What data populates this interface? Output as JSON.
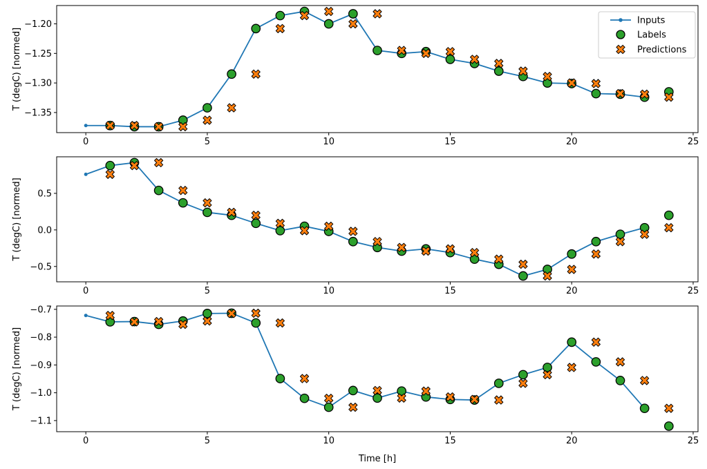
{
  "figure": {
    "background": "#ffffff",
    "xlabel": "Time [h]",
    "ylabel": "T (degC) [normed]",
    "colors": {
      "inputs": "#1f77b4",
      "labels": "#2ca02c",
      "predictions": "#ff7f0e",
      "marker_edge": "#000000",
      "axis": "#000000",
      "text": "#000000",
      "legend_border": "#cccccc",
      "legend_bg": "#ffffff"
    },
    "legend": {
      "position": "upper right",
      "items": [
        {
          "label": "Inputs",
          "marker": "line-dot",
          "color": "#1f77b4"
        },
        {
          "label": "Labels",
          "marker": "circle",
          "color": "#2ca02c"
        },
        {
          "label": "Predictions",
          "marker": "X",
          "color": "#ff7f0e"
        }
      ]
    }
  },
  "chart_data": [
    {
      "type": "line",
      "subplot": "top",
      "ylabel": "T (degC) [normed]",
      "xlabel": "",
      "grid": false,
      "legend": true,
      "xlim": [
        -1.2,
        25.2
      ],
      "ylim": [
        -1.384,
        -1.169
      ],
      "xtick_values": [
        0,
        5,
        10,
        15,
        20,
        25
      ],
      "xtick_labels": [
        "0",
        "5",
        "10",
        "15",
        "20",
        "25"
      ],
      "ytick_values": [
        -1.2,
        -1.25,
        -1.3,
        -1.35
      ],
      "ytick_labels": [
        "−1.20",
        "−1.25",
        "−1.30",
        "−1.35"
      ],
      "series": [
        {
          "name": "Inputs",
          "render": "line-dot",
          "x": [
            0,
            1,
            2,
            3,
            4,
            5,
            6,
            7,
            8,
            9,
            10,
            11,
            12,
            13,
            14,
            15,
            16,
            17,
            18,
            19,
            20,
            21,
            22,
            23
          ],
          "y": [
            -1.372,
            -1.372,
            -1.374,
            -1.374,
            -1.363,
            -1.342,
            -1.285,
            -1.208,
            -1.186,
            -1.179,
            -1.2,
            -1.183,
            -1.245,
            -1.25,
            -1.247,
            -1.26,
            -1.267,
            -1.28,
            -1.289,
            -1.3,
            -1.301,
            -1.318,
            -1.319,
            -1.324
          ]
        },
        {
          "name": "Labels",
          "render": "circle",
          "x": [
            1,
            2,
            3,
            4,
            5,
            6,
            7,
            8,
            9,
            10,
            11,
            12,
            13,
            14,
            15,
            16,
            17,
            18,
            19,
            20,
            21,
            22,
            23,
            24
          ],
          "y": [
            -1.372,
            -1.374,
            -1.374,
            -1.363,
            -1.342,
            -1.285,
            -1.208,
            -1.186,
            -1.179,
            -1.2,
            -1.183,
            -1.245,
            -1.25,
            -1.247,
            -1.26,
            -1.267,
            -1.28,
            -1.289,
            -1.3,
            -1.301,
            -1.318,
            -1.319,
            -1.324,
            -1.315
          ]
        },
        {
          "name": "Predictions",
          "render": "X",
          "x": [
            1,
            2,
            3,
            4,
            5,
            6,
            7,
            8,
            9,
            10,
            11,
            12,
            13,
            14,
            15,
            16,
            17,
            18,
            19,
            20,
            21,
            22,
            23,
            24
          ],
          "y": [
            -1.372,
            -1.372,
            -1.374,
            -1.374,
            -1.363,
            -1.342,
            -1.285,
            -1.208,
            -1.186,
            -1.179,
            -1.2,
            -1.183,
            -1.245,
            -1.25,
            -1.247,
            -1.26,
            -1.267,
            -1.28,
            -1.289,
            -1.3,
            -1.301,
            -1.318,
            -1.319,
            -1.324
          ]
        }
      ]
    },
    {
      "type": "line",
      "subplot": "middle",
      "ylabel": "T (degC) [normed]",
      "xlabel": "",
      "grid": false,
      "legend": false,
      "xlim": [
        -1.2,
        25.2
      ],
      "ylim": [
        -0.71,
        1.0
      ],
      "xtick_values": [
        0,
        5,
        10,
        15,
        20,
        25
      ],
      "xtick_labels": [
        "0",
        "5",
        "10",
        "15",
        "20",
        "25"
      ],
      "ytick_values": [
        0.5,
        0.0,
        -0.5
      ],
      "ytick_labels": [
        "0.5",
        "0.0",
        "−0.5"
      ],
      "series": [
        {
          "name": "Inputs",
          "render": "line-dot",
          "x": [
            0,
            1,
            2,
            3,
            4,
            5,
            6,
            7,
            8,
            9,
            10,
            11,
            12,
            13,
            14,
            15,
            16,
            17,
            18,
            19,
            20,
            21,
            22,
            23
          ],
          "y": [
            0.76,
            0.88,
            0.92,
            0.54,
            0.37,
            0.24,
            0.2,
            0.09,
            -0.01,
            0.05,
            -0.02,
            -0.16,
            -0.24,
            -0.29,
            -0.26,
            -0.31,
            -0.4,
            -0.47,
            -0.63,
            -0.54,
            -0.33,
            -0.16,
            -0.06,
            0.03
          ]
        },
        {
          "name": "Labels",
          "render": "circle",
          "x": [
            1,
            2,
            3,
            4,
            5,
            6,
            7,
            8,
            9,
            10,
            11,
            12,
            13,
            14,
            15,
            16,
            17,
            18,
            19,
            20,
            21,
            22,
            23,
            24
          ],
          "y": [
            0.88,
            0.92,
            0.54,
            0.37,
            0.24,
            0.2,
            0.09,
            -0.01,
            0.05,
            -0.02,
            -0.16,
            -0.24,
            -0.29,
            -0.26,
            -0.31,
            -0.4,
            -0.47,
            -0.63,
            -0.54,
            -0.33,
            -0.16,
            -0.06,
            0.03,
            0.2
          ]
        },
        {
          "name": "Predictions",
          "render": "X",
          "x": [
            1,
            2,
            3,
            4,
            5,
            6,
            7,
            8,
            9,
            10,
            11,
            12,
            13,
            14,
            15,
            16,
            17,
            18,
            19,
            20,
            21,
            22,
            23,
            24
          ],
          "y": [
            0.76,
            0.88,
            0.92,
            0.54,
            0.37,
            0.24,
            0.2,
            0.09,
            -0.01,
            0.05,
            -0.02,
            -0.16,
            -0.24,
            -0.29,
            -0.26,
            -0.31,
            -0.4,
            -0.47,
            -0.63,
            -0.54,
            -0.33,
            -0.16,
            -0.06,
            0.03
          ]
        }
      ]
    },
    {
      "type": "line",
      "subplot": "bottom",
      "ylabel": "T (degC) [normed]",
      "xlabel": "Time [h]",
      "grid": false,
      "legend": false,
      "xlim": [
        -1.2,
        25.2
      ],
      "ylim": [
        -1.14,
        -0.688
      ],
      "xtick_values": [
        0,
        5,
        10,
        15,
        20,
        25
      ],
      "xtick_labels": [
        "0",
        "5",
        "10",
        "15",
        "20",
        "25"
      ],
      "ytick_values": [
        -0.7,
        -0.8,
        -0.9,
        -1.0,
        -1.1
      ],
      "ytick_labels": [
        "−0.7",
        "−0.8",
        "−0.9",
        "−1.0",
        "−1.1"
      ],
      "series": [
        {
          "name": "Inputs",
          "render": "line-dot",
          "x": [
            0,
            1,
            2,
            3,
            4,
            5,
            6,
            7,
            8,
            9,
            10,
            11,
            12,
            13,
            14,
            15,
            16,
            17,
            18,
            19,
            20,
            21,
            22,
            23
          ],
          "y": [
            -0.722,
            -0.745,
            -0.744,
            -0.754,
            -0.742,
            -0.715,
            -0.714,
            -0.749,
            -0.949,
            -1.02,
            -1.052,
            -0.992,
            -1.019,
            -0.994,
            -1.015,
            -1.024,
            -1.026,
            -0.966,
            -0.935,
            -0.909,
            -0.818,
            -0.889,
            -0.956,
            -1.056
          ]
        },
        {
          "name": "Labels",
          "render": "circle",
          "x": [
            1,
            2,
            3,
            4,
            5,
            6,
            7,
            8,
            9,
            10,
            11,
            12,
            13,
            14,
            15,
            16,
            17,
            18,
            19,
            20,
            21,
            22,
            23,
            24
          ],
          "y": [
            -0.745,
            -0.744,
            -0.754,
            -0.742,
            -0.715,
            -0.714,
            -0.749,
            -0.949,
            -1.02,
            -1.052,
            -0.992,
            -1.019,
            -0.994,
            -1.015,
            -1.024,
            -1.026,
            -0.966,
            -0.935,
            -0.909,
            -0.818,
            -0.889,
            -0.956,
            -1.056,
            -1.12
          ]
        },
        {
          "name": "Predictions",
          "render": "X",
          "x": [
            1,
            2,
            3,
            4,
            5,
            6,
            7,
            8,
            9,
            10,
            11,
            12,
            13,
            14,
            15,
            16,
            17,
            18,
            19,
            20,
            21,
            22,
            23,
            24
          ],
          "y": [
            -0.722,
            -0.745,
            -0.744,
            -0.754,
            -0.742,
            -0.715,
            -0.714,
            -0.749,
            -0.949,
            -1.02,
            -1.052,
            -0.992,
            -1.019,
            -0.994,
            -1.015,
            -1.024,
            -1.026,
            -0.966,
            -0.935,
            -0.909,
            -0.818,
            -0.889,
            -0.956,
            -1.056
          ]
        }
      ]
    }
  ]
}
